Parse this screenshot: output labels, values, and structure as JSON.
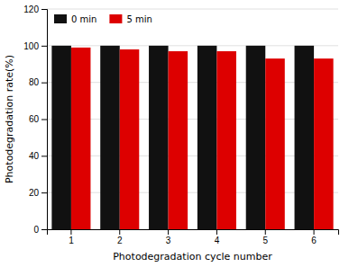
{
  "chart_data": {
    "type": "bar",
    "xlabel": "Photodegradation cycle number",
    "ylabel": "Photodegradation rate(%)",
    "categories": [
      "1",
      "2",
      "3",
      "4",
      "5",
      "6"
    ],
    "series": [
      {
        "name": "0 min",
        "color": "#111111",
        "values": [
          100,
          100,
          100,
          100,
          100,
          100
        ]
      },
      {
        "name": "5 min",
        "color": "#dd0000",
        "values": [
          99,
          98,
          97,
          97,
          93,
          93
        ]
      }
    ],
    "ylim": [
      0,
      120
    ],
    "yticks": [
      0,
      20,
      40,
      60,
      80,
      100,
      120
    ],
    "grid": true,
    "legend": "upper left"
  }
}
